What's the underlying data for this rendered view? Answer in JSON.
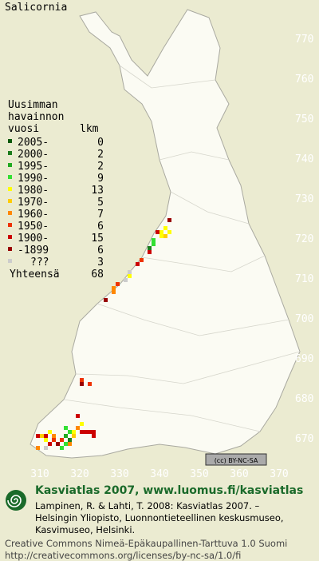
{
  "header": {
    "title": "Salicornia"
  },
  "map": {
    "yticks": [
      670,
      680,
      690,
      700,
      710,
      720,
      730,
      740,
      750,
      760,
      770
    ],
    "xticks": [
      310,
      320,
      330,
      340,
      350,
      360,
      370
    ],
    "xlim": [
      300,
      380
    ],
    "ylim": [
      664,
      780
    ],
    "license_badge": "(cc) BY-NC-SA"
  },
  "legend": {
    "title_lines": [
      "Uusimman",
      "havainnon",
      "vuosi"
    ],
    "count_header": "lkm",
    "rows": [
      {
        "label": "2005-",
        "count": 0,
        "color": "#0b5a0b",
        "cells": []
      },
      {
        "label": "2000-",
        "count": 2,
        "color": "#1c7c1c",
        "cells": [
          [
            337,
            717
          ],
          [
            317,
            669
          ]
        ]
      },
      {
        "label": "1995-",
        "count": 2,
        "color": "#22aa22",
        "cells": [
          [
            316,
            670
          ]
        ]
      },
      {
        "label": "1990-",
        "count": 9,
        "color": "#33e033",
        "cells": [
          [
            338,
            719
          ],
          [
            338,
            718
          ],
          [
            316,
            672
          ],
          [
            317,
            671
          ],
          [
            316,
            668
          ],
          [
            315,
            667
          ]
        ]
      },
      {
        "label": "1980-",
        "count": 13,
        "color": "#ffff00",
        "cells": [
          [
            340,
            721
          ],
          [
            341,
            722
          ],
          [
            342,
            721
          ],
          [
            340,
            720
          ],
          [
            332,
            710
          ],
          [
            312,
            671
          ],
          [
            311,
            669
          ],
          [
            318,
            671
          ],
          [
            320,
            673
          ]
        ]
      },
      {
        "label": "1970-",
        "count": 5,
        "color": "#ffcc00",
        "cells": [
          [
            341,
            720
          ],
          [
            310,
            670
          ],
          [
            318,
            670
          ]
        ]
      },
      {
        "label": "1960-",
        "count": 7,
        "color": "#ff8800",
        "cells": [
          [
            328,
            707
          ],
          [
            328,
            706
          ],
          [
            313,
            670
          ],
          [
            319,
            672
          ],
          [
            309,
            667
          ],
          [
            317,
            668
          ]
        ]
      },
      {
        "label": "1950-",
        "count": 6,
        "color": "#ee3300",
        "cells": [
          [
            335,
            714
          ],
          [
            329,
            708
          ],
          [
            320,
            684
          ],
          [
            322,
            683
          ],
          [
            313,
            669
          ],
          [
            315,
            669
          ]
        ]
      },
      {
        "label": "1900-",
        "count": 15,
        "color": "#cc0000",
        "cells": [
          [
            339,
            721
          ],
          [
            337,
            716
          ],
          [
            334,
            713
          ],
          [
            319,
            675
          ],
          [
            309,
            670
          ],
          [
            311,
            670
          ],
          [
            312,
            668
          ],
          [
            320,
            671
          ],
          [
            321,
            671
          ],
          [
            322,
            671
          ],
          [
            323,
            671
          ],
          [
            323,
            670
          ]
        ]
      },
      {
        "label": "-1899",
        "count": 6,
        "color": "#990000",
        "cells": [
          [
            342,
            724
          ],
          [
            326,
            704
          ],
          [
            320,
            683
          ],
          [
            314,
            668
          ]
        ]
      },
      {
        "label": "???",
        "count": 3,
        "color": "#cccccc",
        "cells": [
          [
            332,
            711
          ],
          [
            331,
            709
          ],
          [
            311,
            667
          ]
        ]
      }
    ],
    "total_label": "Yhteensä",
    "total": 68
  },
  "footer": {
    "title": "Kasviatlas 2007, www.luomus.fi/kasviatlas",
    "citation": [
      "Lampinen, R. & Lahti, T. 2008: Kasviatlas 2007. –",
      "Helsingin Yliopisto, Luonnontieteellinen keskusmuseo,",
      "Kasvimuseo, Helsinki."
    ],
    "license": [
      "Creative Commons Nimeä-Epäkaupallinen-Tarttuva 1.0 Suomi",
      "http://creativecommons.org/licenses/by-nc-sa/1.0/fi"
    ]
  }
}
